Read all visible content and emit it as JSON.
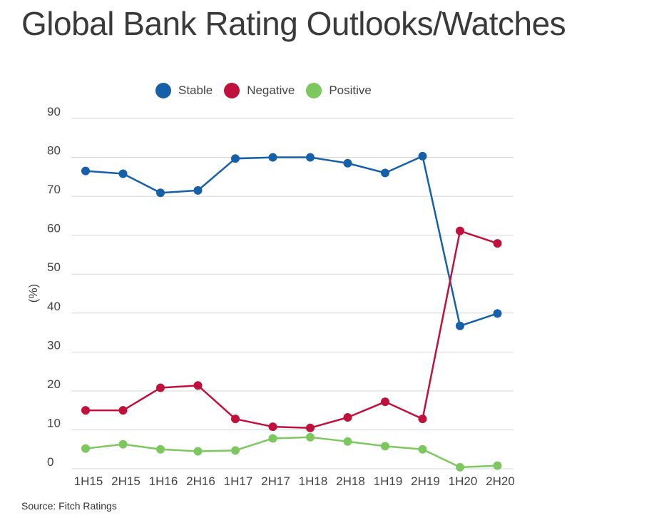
{
  "title": "Global Bank Rating Outlooks/Watches",
  "source": "Source: Fitch Ratings",
  "chart_data": {
    "type": "line",
    "title": "Global Bank Rating Outlooks/Watches",
    "xlabel": "",
    "ylabel": "(%)",
    "ylim": [
      0,
      90
    ],
    "yticks": [
      0,
      10,
      20,
      30,
      40,
      50,
      60,
      70,
      80,
      90
    ],
    "grid": true,
    "legend_position": "top",
    "categories": [
      "1H15",
      "2H15",
      "1H16",
      "2H16",
      "1H17",
      "2H17",
      "1H18",
      "2H18",
      "1H19",
      "2H19",
      "1H20",
      "2H20"
    ],
    "series": [
      {
        "name": "Stable",
        "color": "#1560a8",
        "values": [
          76.5,
          75.8,
          70.9,
          71.5,
          79.7,
          80.0,
          80.0,
          78.5,
          76.0,
          80.3,
          36.7,
          39.9
        ]
      },
      {
        "name": "Negative",
        "color": "#c0103c",
        "values": [
          15.0,
          15.0,
          20.8,
          21.4,
          12.8,
          10.8,
          10.5,
          13.2,
          17.2,
          12.8,
          61.1,
          57.9
        ]
      },
      {
        "name": "Positive",
        "color": "#7cc85e",
        "values": [
          5.2,
          6.3,
          5.0,
          4.5,
          4.7,
          7.8,
          8.1,
          7.0,
          5.8,
          5.0,
          0.4,
          0.8
        ]
      }
    ]
  }
}
